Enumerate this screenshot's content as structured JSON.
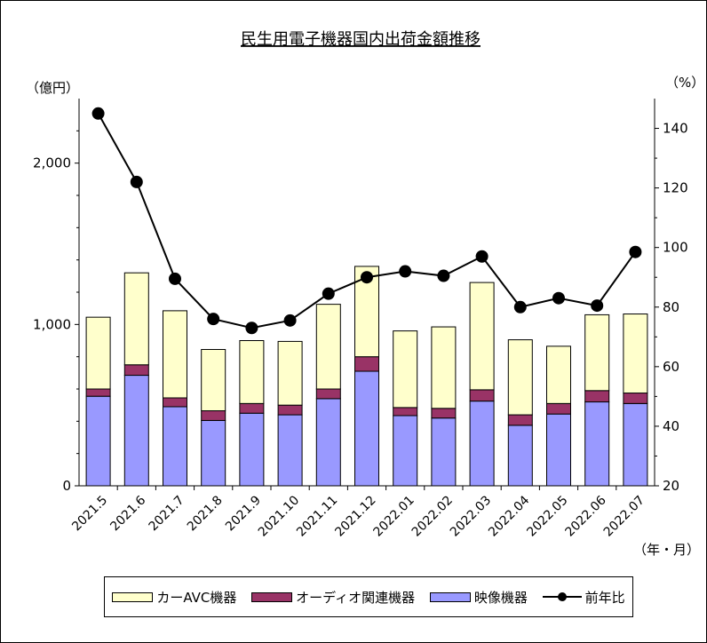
{
  "chart_data": {
    "type": "bar",
    "stacked": true,
    "title": "民生用電子機器国内出荷金額推移",
    "y_left_unit": "（億円）",
    "y_right_unit": "（%）",
    "x_unit": "（年・月）",
    "ylim_left": [
      0,
      2400
    ],
    "ylim_right": [
      20,
      150
    ],
    "yticks_left": [
      {
        "value": 0,
        "label": "0"
      },
      {
        "value": 1000,
        "label": "1,000"
      },
      {
        "value": 2000,
        "label": "2,000"
      }
    ],
    "yticks_right": [
      20,
      40,
      60,
      80,
      100,
      120,
      140
    ],
    "categories": [
      "2021.5",
      "2021.6",
      "2021.7",
      "2021.8",
      "2021.9",
      "2021.10",
      "2021.11",
      "2021.12",
      "2022.01",
      "2022.02",
      "2022.03",
      "2022.04",
      "2022.05",
      "2022.06",
      "2022.07"
    ],
    "series": [
      {
        "name": "映像機器",
        "color": "#9999ff",
        "values": [
          555,
          685,
          490,
          405,
          450,
          440,
          540,
          710,
          435,
          420,
          525,
          375,
          445,
          520,
          510
        ]
      },
      {
        "name": "オーディオ関連機器",
        "color": "#993366",
        "values": [
          45,
          65,
          55,
          60,
          60,
          60,
          60,
          90,
          50,
          60,
          70,
          65,
          65,
          70,
          65
        ]
      },
      {
        "name": "カーAVC機器",
        "color": "#ffffcc",
        "values": [
          445,
          570,
          540,
          380,
          390,
          395,
          525,
          560,
          475,
          505,
          665,
          465,
          355,
          470,
          490
        ]
      }
    ],
    "line_series": {
      "name": "前年比",
      "color": "#000000",
      "axis": "right",
      "values": [
        145,
        122,
        89.5,
        76,
        73,
        75.5,
        84.5,
        90,
        92,
        90.5,
        97,
        80,
        83,
        80.5,
        98.5
      ]
    }
  }
}
